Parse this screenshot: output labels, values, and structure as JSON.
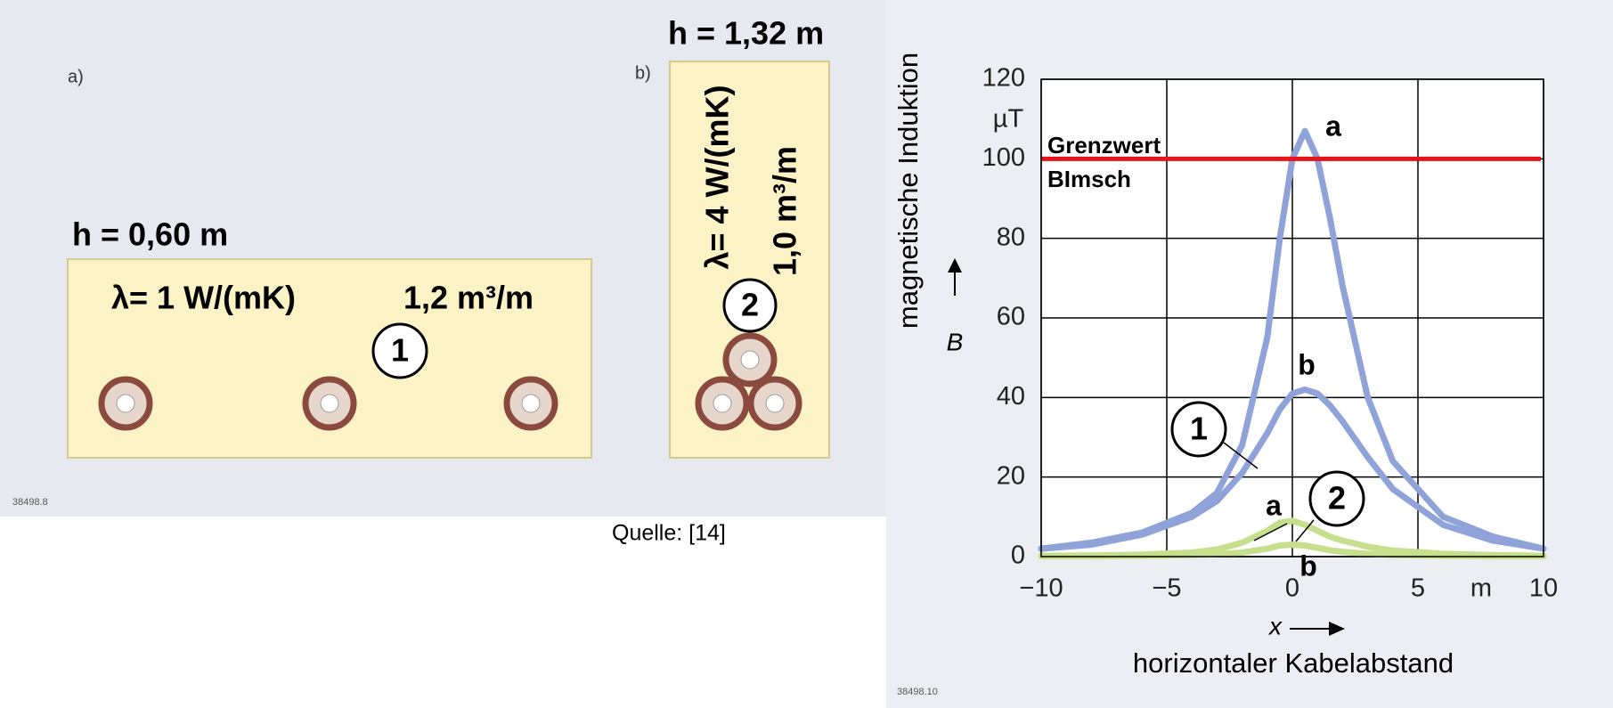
{
  "diagram": {
    "a": {
      "label": "a)",
      "height": "h = 0,60 m",
      "lambda": "λ= 1 W/(mK)",
      "volume": "1,2 m³/m",
      "number": "1"
    },
    "b": {
      "label": "b)",
      "height": "h = 1,32 m",
      "lambda": "λ= 4 W/(mK)",
      "volume": "1,0 m³/m",
      "number": "2"
    },
    "figure_id": "38498.8",
    "source": "Quelle: [14]"
  },
  "chart_data": {
    "type": "line",
    "ylabel": "magnetische Induktion",
    "y_symbol": "B",
    "y_unit": "µT",
    "xlabel": "horizontaler Kabelabstand",
    "x_symbol": "x",
    "x_unit": "m",
    "figure_id": "38498.10",
    "x": [
      -10,
      -8,
      -6,
      -4,
      -3,
      -2,
      -1,
      -0.5,
      0,
      0.5,
      1,
      1.5,
      2,
      3,
      4,
      6,
      8,
      10
    ],
    "series": [
      {
        "color": "#8fa3d8",
        "values": [
          2,
          3.5,
          6,
          11,
          16,
          28,
          55,
          80,
          100,
          107,
          100,
          85,
          68,
          40,
          24,
          10,
          5,
          2
        ]
      },
      {
        "color": "#8fa3d8",
        "values": [
          2,
          3,
          5.5,
          10,
          14,
          21,
          31,
          37,
          41,
          42,
          41,
          38,
          34,
          25,
          17,
          8,
          4,
          2
        ]
      },
      {
        "color": "#c6df8c",
        "values": [
          0.2,
          0.3,
          0.5,
          1,
          1.8,
          3.5,
          6.5,
          8.5,
          9,
          8,
          6.5,
          5,
          4,
          2.5,
          1.5,
          0.7,
          0.4,
          0.2
        ]
      },
      {
        "color": "#c6df8c",
        "values": [
          0.1,
          0.1,
          0.2,
          0.4,
          0.6,
          1,
          2,
          2.8,
          3,
          2.8,
          2.2,
          1.6,
          1.2,
          0.7,
          0.4,
          0.2,
          0.1,
          0.1
        ]
      }
    ],
    "limit_line": {
      "value": 100,
      "color": "#e8141a"
    },
    "annotations": [
      "a",
      "Grenzwert",
      "BImsch",
      "b",
      "1",
      "a",
      "2",
      "b"
    ],
    "xlim": [
      -10,
      10
    ],
    "xticks": [
      {
        "value": -10,
        "label": "−10"
      },
      {
        "value": -5,
        "label": "−5"
      },
      0,
      5,
      10
    ],
    "ylim": [
      0,
      120
    ],
    "yticks": [
      0,
      20,
      40,
      60,
      80,
      100,
      120
    ],
    "grid": true
  }
}
